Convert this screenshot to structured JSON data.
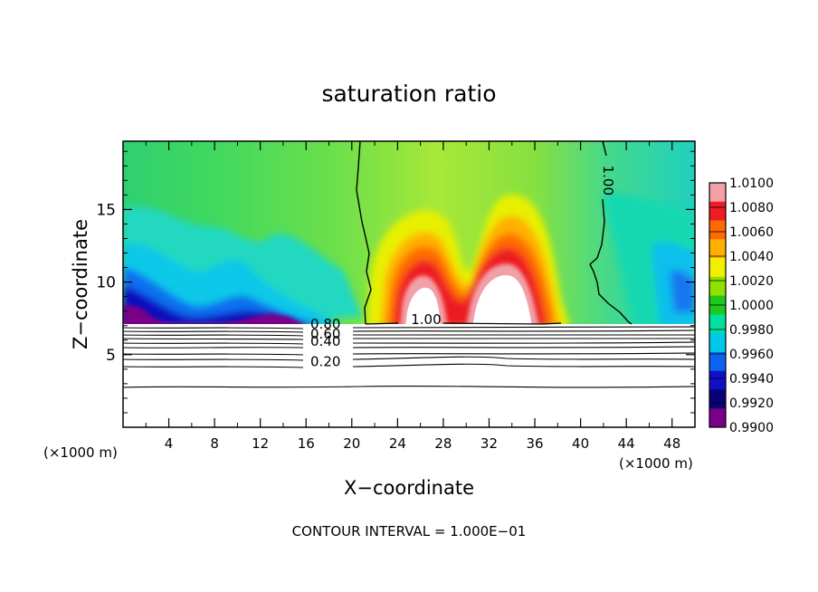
{
  "chart_data": {
    "type": "heatmap",
    "title": "saturation ratio",
    "xlabel": "X−coordinate",
    "ylabel": "Z−coordinate",
    "x_unit": "(×1000 m)",
    "z_unit": "(×1000 m)",
    "footer": "CONTOUR INTERVAL = 1.000E−01",
    "xlim": [
      0,
      50
    ],
    "ylim": [
      0,
      19.7
    ],
    "x_ticks": [
      "4",
      "8",
      "12",
      "16",
      "20",
      "24",
      "28",
      "32",
      "36",
      "40",
      "44",
      "48"
    ],
    "y_ticks": [
      "5",
      "10",
      "15"
    ],
    "colorbar": {
      "levels": [
        "1.0100",
        "1.0080",
        "1.0060",
        "1.0040",
        "1.0020",
        "1.0000",
        "0.9980",
        "0.9960",
        "0.9940",
        "0.9920",
        "0.9900"
      ],
      "colors": [
        "#f2a0a8",
        "#ee1c24",
        "#ff6a00",
        "#ffb000",
        "#f0f000",
        "#90e000",
        "#1ec81e",
        "#00e0a0",
        "#00c8e8",
        "#0a64f0",
        "#1010c8",
        "#0a0078",
        "#7a0088"
      ]
    },
    "contour_labels": [
      {
        "text": "1.00",
        "x": 42.0,
        "z": 17.0
      },
      {
        "text": "1.00",
        "x": 26.5,
        "z": 7.1
      },
      {
        "text": "0.80",
        "x": 17.7,
        "z": 6.8
      },
      {
        "text": "0.60",
        "x": 17.7,
        "z": 6.1
      },
      {
        "text": "0.40",
        "x": 17.7,
        "z": 5.6
      },
      {
        "text": "0.20",
        "x": 17.7,
        "z": 4.2
      }
    ]
  }
}
